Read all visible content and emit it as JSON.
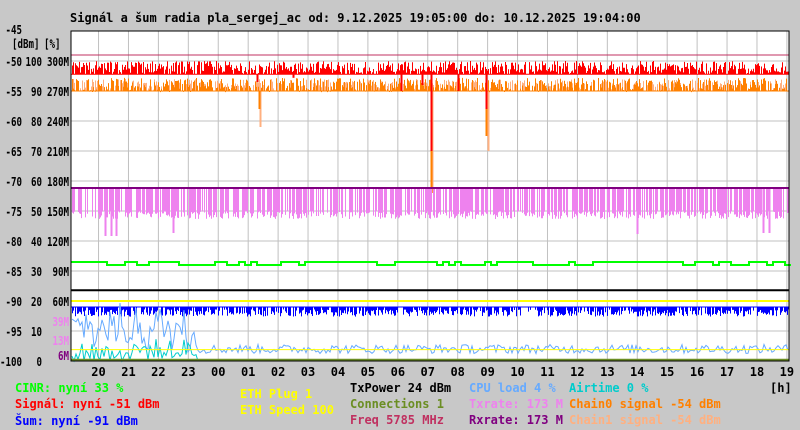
{
  "chart_data": {
    "type": "line",
    "title": "Signál a šum radia pla_sergej_ac od: 9.12.2025 19:05:00 do: 10.12.2025 19:04:00",
    "xlabel": "[h]",
    "ylabel_left": "[dBm]",
    "ylabel_pct": "[%]",
    "ylim_dbm": [
      -100,
      -45
    ],
    "x_range_hours": [
      19.08,
      43.07
    ],
    "x_ticks": [
      "20",
      "21",
      "22",
      "23",
      "00",
      "01",
      "02",
      "03",
      "04",
      "05",
      "06",
      "07",
      "08",
      "09",
      "10",
      "11",
      "12",
      "13",
      "14",
      "15",
      "16",
      "17",
      "18",
      "19"
    ],
    "y_ticks_dbm": [
      "-45",
      "-50",
      "-55",
      "-60",
      "-65",
      "-70",
      "-75",
      "-80",
      "-85",
      "-90",
      "-95",
      "-100"
    ],
    "y_ticks_pct": [
      "100",
      "90",
      "80",
      "70",
      "60",
      "50",
      "40",
      "30",
      "20",
      "10",
      "0"
    ],
    "y_ticks_rate": [
      "300M",
      "270M",
      "240M",
      "210M",
      "180M",
      "150M",
      "120M",
      "90M",
      "60M"
    ],
    "y_ticks_extra": [
      {
        "label": "39M",
        "color": "#ee82ee"
      },
      {
        "label": "13M",
        "color": "#ee82ee"
      },
      {
        "label": "6M",
        "color": "#800080"
      }
    ],
    "grid": true,
    "series": [
      {
        "name": "Freq",
        "unit": "MHz",
        "color": "#c03060",
        "style": "hline",
        "level_dbm": -49
      },
      {
        "name": "Signal",
        "unit": "dBm",
        "color": "#ff0000",
        "style": "bars",
        "ref": -52.2,
        "typical": -51.0,
        "jitter": 1.0,
        "gaps": 0.15,
        "spikes": [
          {
            "h": 25.3,
            "v": -53.5
          },
          {
            "h": 26.5,
            "v": -52.8
          },
          {
            "h": 30.1,
            "v": -55
          },
          {
            "h": 30.8,
            "v": -54
          },
          {
            "h": 31.1,
            "v": -57.5
          },
          {
            "h": 31.12,
            "v": -65
          },
          {
            "h": 32.0,
            "v": -55
          },
          {
            "h": 32.95,
            "v": -58
          }
        ]
      },
      {
        "name": "Chain0 signal",
        "unit": "dBm",
        "color": "#ff8000",
        "style": "bars",
        "ref": -55.0,
        "typical": -54.0,
        "jitter": 1.2,
        "gaps": 0.2,
        "spikes": [
          {
            "h": 25.35,
            "v": -58
          },
          {
            "h": 31.12,
            "v": -72
          },
          {
            "h": 32.95,
            "v": -62.5
          }
        ]
      },
      {
        "name": "Chain1 signal",
        "unit": "dBm",
        "color": "#ffb080",
        "style": "bars",
        "ref": -55.0,
        "typical": -54.0,
        "jitter": 1.0,
        "gaps": 0.3,
        "spikes": [
          {
            "h": 25.4,
            "v": -61
          },
          {
            "h": 31.15,
            "v": -72
          },
          {
            "h": 33.0,
            "v": -65
          }
        ]
      },
      {
        "name": "Rxrate",
        "unit": "M",
        "color": "#800080",
        "style": "hline",
        "level_m": 173
      },
      {
        "name": "Txrate",
        "unit": "M",
        "color": "#ee82ee",
        "style": "bars",
        "ref_m": 173,
        "typical_m": 146,
        "jitter_m": 4,
        "gaps": 0.3,
        "spikes": [
          {
            "h": 20.2,
            "v": 125
          },
          {
            "h": 20.4,
            "v": 125
          },
          {
            "h": 20.6,
            "v": 125
          },
          {
            "h": 22.5,
            "v": 128
          },
          {
            "h": 38.0,
            "v": 127
          },
          {
            "h": 42.2,
            "v": 128
          },
          {
            "h": 42.4,
            "v": 128
          }
        ]
      },
      {
        "name": "CINR",
        "unit": "%",
        "color": "#00ff00",
        "style": "steps",
        "typical": 33,
        "low": 32
      },
      {
        "name": "TxPower",
        "unit": "dBm",
        "color": "#000000",
        "style": "hline",
        "level_dbm": -88.2
      },
      {
        "name": "ETH Speed",
        "unit": "",
        "color": "#ffff00",
        "style": "hline",
        "level_dbm": -90.0
      },
      {
        "name": "Sum (noise)",
        "unit": "dBm",
        "color": "#0000ff",
        "style": "bars",
        "ref": -91.0,
        "typical": -92.0,
        "jitter": 0.6,
        "gaps": 0.25
      },
      {
        "name": "CPU load",
        "unit": "%",
        "color": "#66aaff",
        "style": "line",
        "typical": 4,
        "early_peak": 14
      },
      {
        "name": "Airtime",
        "unit": "%",
        "color": "#00cccc",
        "style": "line",
        "typical": 0,
        "early_peak": 6
      },
      {
        "name": "ETH Plug",
        "unit": "",
        "color": "#ffff00",
        "style": "hline",
        "level_dbm": -98.1
      },
      {
        "name": "Connections",
        "unit": "",
        "color": "#6b8e23",
        "style": "hline",
        "level_dbm": -99.8
      }
    ]
  },
  "legend": {
    "cinr": "CINR: nyní 33 %",
    "signal": "Signál: nyní -51 dBm",
    "noise": "Šum: nyní -91 dBm",
    "eth_plug": "ETH Plug 1",
    "eth_speed": "ETH Speed 100",
    "txpower": "TxPower 24 dBm",
    "connections": "Connections 1",
    "freq": "Freq 5785 MHz",
    "cpu": "CPU load 4 %",
    "txrate": "Txrate: 173 M",
    "rxrate": "Rxrate: 173 M",
    "airtime": "Airtime 0 %",
    "chain0": "Chain0 signal -54 dBm",
    "chain1": "Chain1 signal -54 dBm"
  }
}
